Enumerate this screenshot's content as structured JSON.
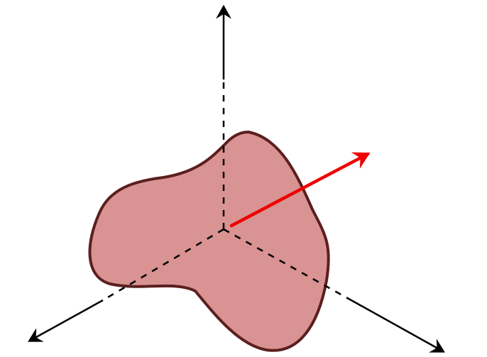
{
  "diagram": {
    "type": "3d-coordinate-axes-with-surface-and-normal-vector",
    "colors": {
      "axis": "#000000",
      "surface_fill": "#d99393",
      "surface_stroke": "#5b1f1f",
      "normal_vector": "#ee0000"
    },
    "elements": [
      {
        "name": "vertical-axis",
        "style": "dashed inside surface, solid outside, arrowhead up"
      },
      {
        "name": "left-axis",
        "style": "dashed inside surface, solid outside, arrowhead lower-left"
      },
      {
        "name": "right-axis",
        "style": "dashed inside surface, solid outside, arrowhead lower-right"
      },
      {
        "name": "surface-patch",
        "style": "irregular filled shape"
      },
      {
        "name": "normal-vector",
        "style": "red arrow from origin toward upper-right"
      }
    ]
  }
}
